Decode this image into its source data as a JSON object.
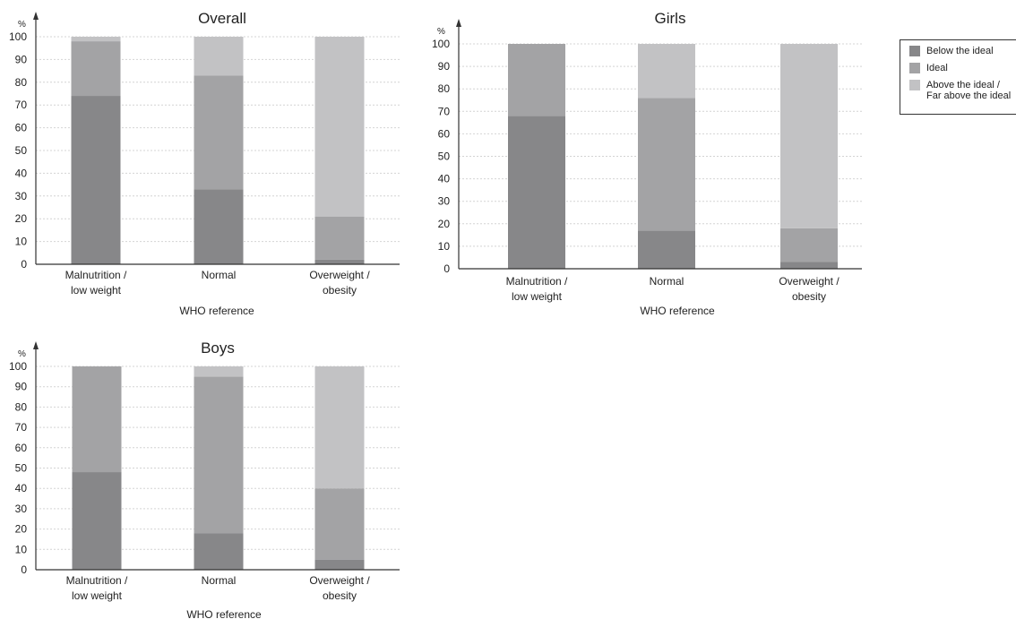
{
  "colors": {
    "below": "#878789",
    "ideal": "#a3a3a5",
    "above": "#c2c2c4"
  },
  "legend": {
    "items": [
      {
        "key": "below",
        "label": "Below the ideal"
      },
      {
        "key": "ideal",
        "label": "Ideal"
      },
      {
        "key": "above",
        "label": "Above the ideal /\nFar above the ideal"
      }
    ]
  },
  "chart_data": [
    {
      "type": "bar",
      "stacked": true,
      "title": "Overall",
      "xlabel": "WHO reference",
      "ylabel": "%",
      "ylim": [
        0,
        100
      ],
      "yticks": [
        0,
        10,
        20,
        30,
        40,
        50,
        60,
        70,
        80,
        90,
        100
      ],
      "categories": [
        "Malnutrition /\nlow weight",
        "Normal",
        "Overweight /\nobesity"
      ],
      "series": [
        {
          "name": "Below the ideal",
          "key": "below",
          "values": [
            74,
            33,
            2
          ]
        },
        {
          "name": "Ideal",
          "key": "ideal",
          "values": [
            24,
            50,
            19
          ]
        },
        {
          "name": "Above the ideal / Far above the ideal",
          "key": "above",
          "values": [
            4,
            20,
            81
          ]
        }
      ]
    },
    {
      "type": "bar",
      "stacked": true,
      "title": "Girls",
      "xlabel": "WHO reference",
      "ylabel": "%",
      "ylim": [
        0,
        100
      ],
      "yticks": [
        0,
        10,
        20,
        30,
        40,
        50,
        60,
        70,
        80,
        90,
        100
      ],
      "categories": [
        "Malnutrition /\nlow weight",
        "Normal",
        "Overweight /\nobesity"
      ],
      "series": [
        {
          "name": "Below the ideal",
          "key": "below",
          "values": [
            68,
            17,
            3
          ]
        },
        {
          "name": "Ideal",
          "key": "ideal",
          "values": [
            33,
            59,
            15
          ]
        },
        {
          "name": "Above the ideal / Far above the ideal",
          "key": "above",
          "values": [
            3,
            27,
            85
          ]
        }
      ]
    },
    {
      "type": "bar",
      "stacked": true,
      "title": "Boys",
      "xlabel": "WHO reference",
      "ylabel": "%",
      "ylim": [
        0,
        100
      ],
      "yticks": [
        0,
        10,
        20,
        30,
        40,
        50,
        60,
        70,
        80,
        90,
        100
      ],
      "categories": [
        "Malnutrition /\nlow weight",
        "Normal",
        "Overweight /\nobesity"
      ],
      "series": [
        {
          "name": "Below the ideal",
          "key": "below",
          "values": [
            48,
            18,
            5
          ]
        },
        {
          "name": "Ideal",
          "key": "ideal",
          "values": [
            53,
            77,
            35
          ]
        },
        {
          "name": "Above the ideal / Far above the ideal",
          "key": "above",
          "values": [
            2,
            8,
            62
          ]
        }
      ]
    }
  ]
}
